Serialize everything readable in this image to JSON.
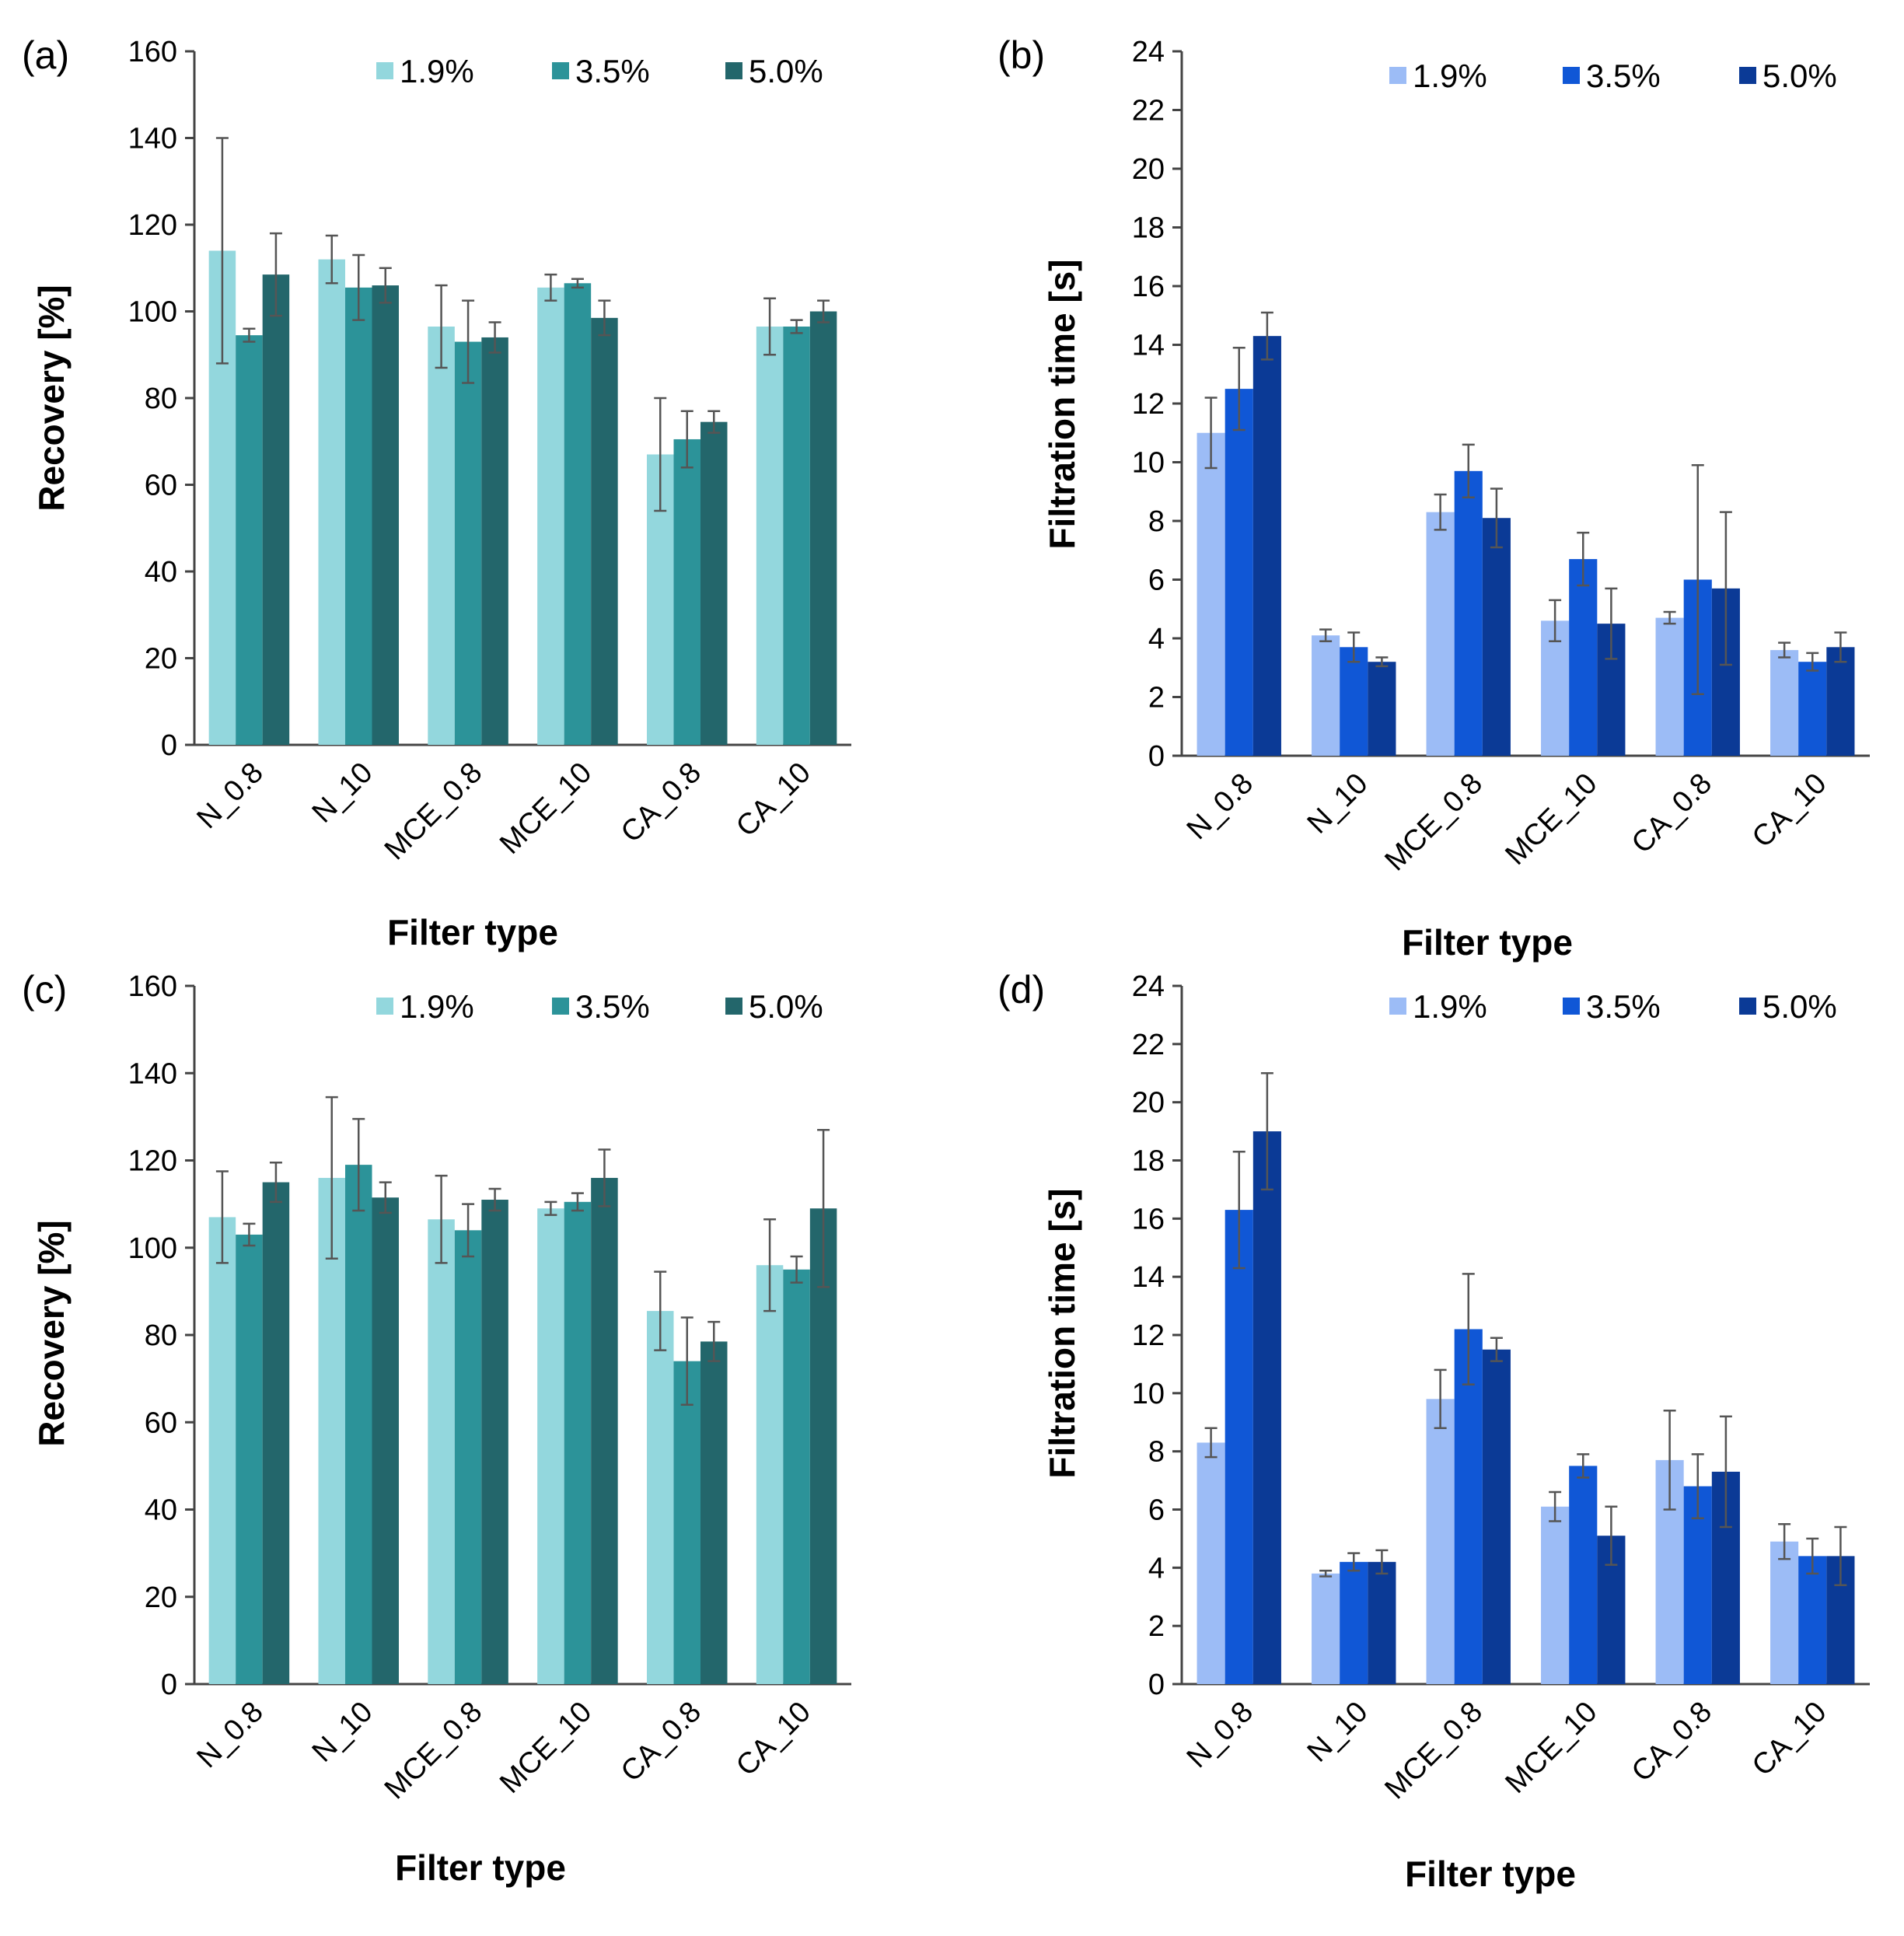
{
  "chart_data": [
    {
      "type": "bar",
      "panel_label": "(a)",
      "categories": [
        "N_0.8",
        "N_10",
        "MCE_0.8",
        "MCE_10",
        "CA_0.8",
        "CA_10"
      ],
      "series": [
        {
          "name": "1.9%",
          "color": "#93d7dd",
          "values": [
            114,
            112,
            96.5,
            105.5,
            67,
            96.5
          ],
          "errors": [
            26,
            5.5,
            9.5,
            3,
            13,
            6.5
          ]
        },
        {
          "name": "3.5%",
          "color": "#2c9399",
          "values": [
            94.5,
            105.5,
            93,
            106.5,
            70.5,
            96.5
          ],
          "errors": [
            1.5,
            7.5,
            9.5,
            1,
            6.5,
            1.5
          ]
        },
        {
          "name": "5.0%",
          "color": "#23666b",
          "values": [
            108.5,
            106,
            94,
            98.5,
            74.5,
            100
          ],
          "errors": [
            9.5,
            4,
            3.5,
            4,
            2.5,
            2.5
          ]
        }
      ],
      "ylim": [
        0,
        160
      ],
      "yticks": [
        0,
        20,
        40,
        60,
        80,
        100,
        120,
        140,
        160
      ],
      "ylabel": "Recovery [%]",
      "xlabel": "Filter type",
      "legend": "top-right"
    },
    {
      "type": "bar",
      "panel_label": "(b)",
      "categories": [
        "N_0.8",
        "N_10",
        "MCE_0.8",
        "MCE_10",
        "CA_0.8",
        "CA_10"
      ],
      "series": [
        {
          "name": "1.9%",
          "color": "#9cbcf6",
          "values": [
            11,
            4.1,
            8.3,
            4.6,
            4.7,
            3.6
          ],
          "errors": [
            1.2,
            0.2,
            0.6,
            0.7,
            0.2,
            0.25
          ]
        },
        {
          "name": "3.5%",
          "color": "#1057d6",
          "values": [
            12.5,
            3.7,
            9.7,
            6.7,
            6,
            3.2
          ],
          "errors": [
            1.4,
            0.5,
            0.9,
            0.9,
            3.9,
            0.3
          ]
        },
        {
          "name": "5.0%",
          "color": "#0b3a96",
          "values": [
            14.3,
            3.2,
            8.1,
            4.5,
            5.7,
            3.7
          ],
          "errors": [
            0.8,
            0.15,
            1,
            1.2,
            2.6,
            0.5
          ]
        }
      ],
      "ylim": [
        0,
        24
      ],
      "yticks": [
        0,
        2,
        4,
        6,
        8,
        10,
        12,
        14,
        16,
        18,
        20,
        22,
        24
      ],
      "ylabel": "Filtration time [s]",
      "xlabel": "Filter type",
      "legend": "top-right"
    },
    {
      "type": "bar",
      "panel_label": "(c)",
      "categories": [
        "N_0.8",
        "N_10",
        "MCE_0.8",
        "MCE_10",
        "CA_0.8",
        "CA_10"
      ],
      "series": [
        {
          "name": "1.9%",
          "color": "#93d7dd",
          "values": [
            107,
            116,
            106.5,
            109,
            85.5,
            96
          ],
          "errors": [
            10.5,
            18.5,
            10,
            1.5,
            9,
            10.5
          ]
        },
        {
          "name": "3.5%",
          "color": "#2c9399",
          "values": [
            103,
            119,
            104,
            110.5,
            74,
            95
          ],
          "errors": [
            2.5,
            10.5,
            6,
            2,
            10,
            3
          ]
        },
        {
          "name": "5.0%",
          "color": "#23666b",
          "values": [
            115,
            111.5,
            111,
            116,
            78.5,
            109
          ],
          "errors": [
            4.5,
            3.5,
            2.5,
            6.5,
            4.5,
            18
          ]
        }
      ],
      "ylim": [
        0,
        160
      ],
      "yticks": [
        0,
        20,
        40,
        60,
        80,
        100,
        120,
        140,
        160
      ],
      "ylabel": "Recovery [%]",
      "xlabel": "Filter type",
      "legend": "top-right"
    },
    {
      "type": "bar",
      "panel_label": "(d)",
      "categories": [
        "N_0.8",
        "N_10",
        "MCE_0.8",
        "MCE_10",
        "CA_0.8",
        "CA_10"
      ],
      "series": [
        {
          "name": "1.9%",
          "color": "#9cbcf6",
          "values": [
            8.3,
            3.8,
            9.8,
            6.1,
            7.7,
            4.9
          ],
          "errors": [
            0.5,
            0.1,
            1,
            0.5,
            1.7,
            0.6
          ]
        },
        {
          "name": "3.5%",
          "color": "#1057d6",
          "values": [
            16.3,
            4.2,
            12.2,
            7.5,
            6.8,
            4.4
          ],
          "errors": [
            2,
            0.3,
            1.9,
            0.4,
            1.1,
            0.6
          ]
        },
        {
          "name": "5.0%",
          "color": "#0b3a96",
          "values": [
            19,
            4.2,
            11.5,
            5.1,
            7.3,
            4.4
          ],
          "errors": [
            2,
            0.4,
            0.4,
            1,
            1.9,
            1
          ]
        }
      ],
      "ylim": [
        0,
        24
      ],
      "yticks": [
        0,
        2,
        4,
        6,
        8,
        10,
        12,
        14,
        16,
        18,
        20,
        22,
        24
      ],
      "ylabel": "Filtration time [s]",
      "xlabel": "Filter type",
      "legend": "top-right"
    }
  ]
}
